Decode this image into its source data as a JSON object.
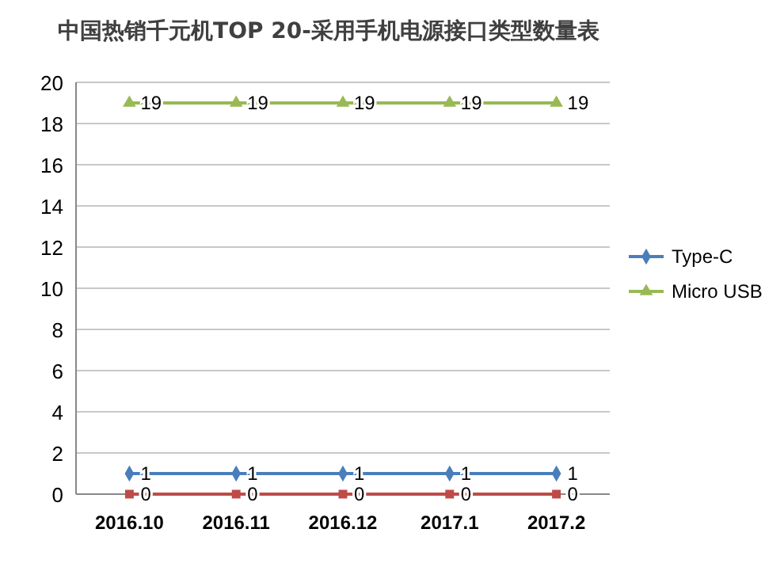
{
  "chart_data": {
    "type": "line",
    "title": "中国热销千元机TOP 20-采用手机电源接口类型数量表",
    "categories": [
      "2016.10",
      "2016.11",
      "2016.12",
      "2017.1",
      "2017.2"
    ],
    "ylim": [
      0,
      20
    ],
    "yticks": [
      0,
      2,
      4,
      6,
      8,
      10,
      12,
      14,
      16,
      18,
      20
    ],
    "grid": "y",
    "legend": "right",
    "data_labels": true,
    "series": [
      {
        "name": "Type-C",
        "color": "#4a7ebb",
        "marker": "diamond",
        "values": [
          1,
          1,
          1,
          1,
          1
        ]
      },
      {
        "color": "#be4b48",
        "marker": "square",
        "values": [
          0,
          0,
          0,
          0,
          0
        ]
      },
      {
        "name": "Micro USB",
        "color": "#98b954",
        "marker": "triangle",
        "values": [
          19,
          19,
          19,
          19,
          19
        ]
      }
    ]
  }
}
